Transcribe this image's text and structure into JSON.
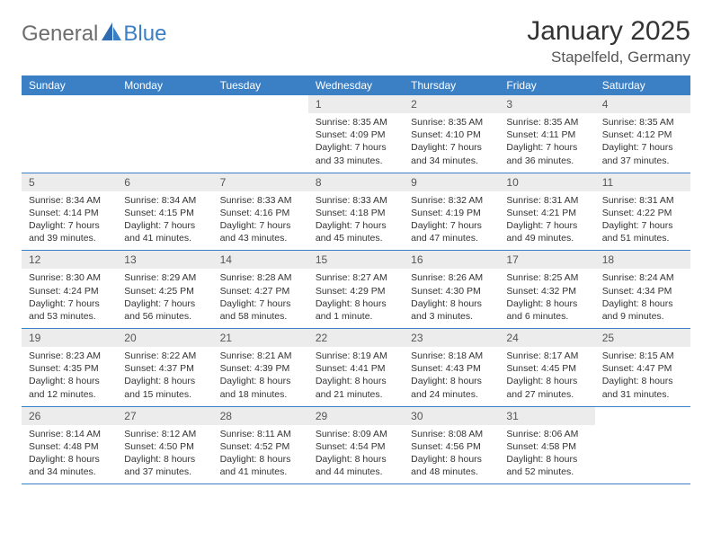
{
  "logo": {
    "part1": "General",
    "part2": "Blue"
  },
  "title": "January 2025",
  "location": "Stapelfeld, Germany",
  "colors": {
    "header_bar": "#3b7fc4",
    "daynum_bg": "#ececec",
    "text": "#333333",
    "logo_gray": "#6d6d6d",
    "logo_blue": "#3b7fc4"
  },
  "weekdays": [
    "Sunday",
    "Monday",
    "Tuesday",
    "Wednesday",
    "Thursday",
    "Friday",
    "Saturday"
  ],
  "weeks": [
    [
      {
        "n": "",
        "sr": "",
        "ss": "",
        "d1": "",
        "d2": ""
      },
      {
        "n": "",
        "sr": "",
        "ss": "",
        "d1": "",
        "d2": ""
      },
      {
        "n": "",
        "sr": "",
        "ss": "",
        "d1": "",
        "d2": ""
      },
      {
        "n": "1",
        "sr": "Sunrise: 8:35 AM",
        "ss": "Sunset: 4:09 PM",
        "d1": "Daylight: 7 hours",
        "d2": "and 33 minutes."
      },
      {
        "n": "2",
        "sr": "Sunrise: 8:35 AM",
        "ss": "Sunset: 4:10 PM",
        "d1": "Daylight: 7 hours",
        "d2": "and 34 minutes."
      },
      {
        "n": "3",
        "sr": "Sunrise: 8:35 AM",
        "ss": "Sunset: 4:11 PM",
        "d1": "Daylight: 7 hours",
        "d2": "and 36 minutes."
      },
      {
        "n": "4",
        "sr": "Sunrise: 8:35 AM",
        "ss": "Sunset: 4:12 PM",
        "d1": "Daylight: 7 hours",
        "d2": "and 37 minutes."
      }
    ],
    [
      {
        "n": "5",
        "sr": "Sunrise: 8:34 AM",
        "ss": "Sunset: 4:14 PM",
        "d1": "Daylight: 7 hours",
        "d2": "and 39 minutes."
      },
      {
        "n": "6",
        "sr": "Sunrise: 8:34 AM",
        "ss": "Sunset: 4:15 PM",
        "d1": "Daylight: 7 hours",
        "d2": "and 41 minutes."
      },
      {
        "n": "7",
        "sr": "Sunrise: 8:33 AM",
        "ss": "Sunset: 4:16 PM",
        "d1": "Daylight: 7 hours",
        "d2": "and 43 minutes."
      },
      {
        "n": "8",
        "sr": "Sunrise: 8:33 AM",
        "ss": "Sunset: 4:18 PM",
        "d1": "Daylight: 7 hours",
        "d2": "and 45 minutes."
      },
      {
        "n": "9",
        "sr": "Sunrise: 8:32 AM",
        "ss": "Sunset: 4:19 PM",
        "d1": "Daylight: 7 hours",
        "d2": "and 47 minutes."
      },
      {
        "n": "10",
        "sr": "Sunrise: 8:31 AM",
        "ss": "Sunset: 4:21 PM",
        "d1": "Daylight: 7 hours",
        "d2": "and 49 minutes."
      },
      {
        "n": "11",
        "sr": "Sunrise: 8:31 AM",
        "ss": "Sunset: 4:22 PM",
        "d1": "Daylight: 7 hours",
        "d2": "and 51 minutes."
      }
    ],
    [
      {
        "n": "12",
        "sr": "Sunrise: 8:30 AM",
        "ss": "Sunset: 4:24 PM",
        "d1": "Daylight: 7 hours",
        "d2": "and 53 minutes."
      },
      {
        "n": "13",
        "sr": "Sunrise: 8:29 AM",
        "ss": "Sunset: 4:25 PM",
        "d1": "Daylight: 7 hours",
        "d2": "and 56 minutes."
      },
      {
        "n": "14",
        "sr": "Sunrise: 8:28 AM",
        "ss": "Sunset: 4:27 PM",
        "d1": "Daylight: 7 hours",
        "d2": "and 58 minutes."
      },
      {
        "n": "15",
        "sr": "Sunrise: 8:27 AM",
        "ss": "Sunset: 4:29 PM",
        "d1": "Daylight: 8 hours",
        "d2": "and 1 minute."
      },
      {
        "n": "16",
        "sr": "Sunrise: 8:26 AM",
        "ss": "Sunset: 4:30 PM",
        "d1": "Daylight: 8 hours",
        "d2": "and 3 minutes."
      },
      {
        "n": "17",
        "sr": "Sunrise: 8:25 AM",
        "ss": "Sunset: 4:32 PM",
        "d1": "Daylight: 8 hours",
        "d2": "and 6 minutes."
      },
      {
        "n": "18",
        "sr": "Sunrise: 8:24 AM",
        "ss": "Sunset: 4:34 PM",
        "d1": "Daylight: 8 hours",
        "d2": "and 9 minutes."
      }
    ],
    [
      {
        "n": "19",
        "sr": "Sunrise: 8:23 AM",
        "ss": "Sunset: 4:35 PM",
        "d1": "Daylight: 8 hours",
        "d2": "and 12 minutes."
      },
      {
        "n": "20",
        "sr": "Sunrise: 8:22 AM",
        "ss": "Sunset: 4:37 PM",
        "d1": "Daylight: 8 hours",
        "d2": "and 15 minutes."
      },
      {
        "n": "21",
        "sr": "Sunrise: 8:21 AM",
        "ss": "Sunset: 4:39 PM",
        "d1": "Daylight: 8 hours",
        "d2": "and 18 minutes."
      },
      {
        "n": "22",
        "sr": "Sunrise: 8:19 AM",
        "ss": "Sunset: 4:41 PM",
        "d1": "Daylight: 8 hours",
        "d2": "and 21 minutes."
      },
      {
        "n": "23",
        "sr": "Sunrise: 8:18 AM",
        "ss": "Sunset: 4:43 PM",
        "d1": "Daylight: 8 hours",
        "d2": "and 24 minutes."
      },
      {
        "n": "24",
        "sr": "Sunrise: 8:17 AM",
        "ss": "Sunset: 4:45 PM",
        "d1": "Daylight: 8 hours",
        "d2": "and 27 minutes."
      },
      {
        "n": "25",
        "sr": "Sunrise: 8:15 AM",
        "ss": "Sunset: 4:47 PM",
        "d1": "Daylight: 8 hours",
        "d2": "and 31 minutes."
      }
    ],
    [
      {
        "n": "26",
        "sr": "Sunrise: 8:14 AM",
        "ss": "Sunset: 4:48 PM",
        "d1": "Daylight: 8 hours",
        "d2": "and 34 minutes."
      },
      {
        "n": "27",
        "sr": "Sunrise: 8:12 AM",
        "ss": "Sunset: 4:50 PM",
        "d1": "Daylight: 8 hours",
        "d2": "and 37 minutes."
      },
      {
        "n": "28",
        "sr": "Sunrise: 8:11 AM",
        "ss": "Sunset: 4:52 PM",
        "d1": "Daylight: 8 hours",
        "d2": "and 41 minutes."
      },
      {
        "n": "29",
        "sr": "Sunrise: 8:09 AM",
        "ss": "Sunset: 4:54 PM",
        "d1": "Daylight: 8 hours",
        "d2": "and 44 minutes."
      },
      {
        "n": "30",
        "sr": "Sunrise: 8:08 AM",
        "ss": "Sunset: 4:56 PM",
        "d1": "Daylight: 8 hours",
        "d2": "and 48 minutes."
      },
      {
        "n": "31",
        "sr": "Sunrise: 8:06 AM",
        "ss": "Sunset: 4:58 PM",
        "d1": "Daylight: 8 hours",
        "d2": "and 52 minutes."
      },
      {
        "n": "",
        "sr": "",
        "ss": "",
        "d1": "",
        "d2": ""
      }
    ]
  ]
}
